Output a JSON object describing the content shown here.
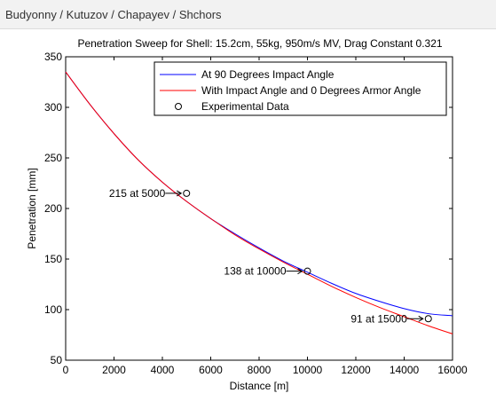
{
  "header": {
    "title": "Budyonny / Kutuzov / Chapayev / Shchors"
  },
  "chart_data": {
    "type": "line",
    "title": "Penetration Sweep for Shell: 15.2cm, 55kg, 950m/s MV, Drag Constant 0.321",
    "xlabel": "Distance [m]",
    "ylabel": "Penetration [mm]",
    "xlim": [
      0,
      16000
    ],
    "ylim": [
      50,
      350
    ],
    "xticks": [
      0,
      2000,
      4000,
      6000,
      8000,
      10000,
      12000,
      14000,
      16000
    ],
    "yticks": [
      50,
      100,
      150,
      200,
      250,
      300,
      350
    ],
    "xtick_labels": [
      "0",
      "2000",
      "4000",
      "6000",
      "8000",
      "10000",
      "12000",
      "14000",
      "16000"
    ],
    "ytick_labels": [
      "50",
      "100",
      "150",
      "200",
      "250",
      "300",
      "350"
    ],
    "legend_position": "top-right",
    "series": [
      {
        "name": "At 90 Degrees Impact Angle",
        "color": "#0000ff",
        "x": [
          0,
          1000,
          2000,
          3000,
          4000,
          5000,
          6000,
          7000,
          8000,
          9000,
          10000,
          11000,
          12000,
          13000,
          14000,
          15000,
          16000
        ],
        "y": [
          335,
          303,
          274,
          248,
          226,
          207,
          190,
          175,
          161,
          148,
          137,
          126,
          116,
          108,
          101,
          96,
          94
        ]
      },
      {
        "name": "With Impact Angle and 0 Degrees Armor Angle",
        "color": "#ff0000",
        "x": [
          0,
          1000,
          2000,
          3000,
          4000,
          5000,
          6000,
          7000,
          8000,
          9000,
          10000,
          11000,
          12000,
          13000,
          14000,
          15000,
          16000
        ],
        "y": [
          335,
          303,
          274,
          248,
          226,
          207,
          190,
          174,
          160,
          147,
          135,
          123,
          112,
          102,
          93,
          84,
          76
        ]
      }
    ],
    "experimental": {
      "name": "Experimental Data",
      "points": [
        {
          "x": 5000,
          "y": 215,
          "label": "215 at 5000"
        },
        {
          "x": 10000,
          "y": 138,
          "label": "138 at 10000"
        },
        {
          "x": 15000,
          "y": 91,
          "label": "91 at 15000"
        }
      ]
    }
  }
}
